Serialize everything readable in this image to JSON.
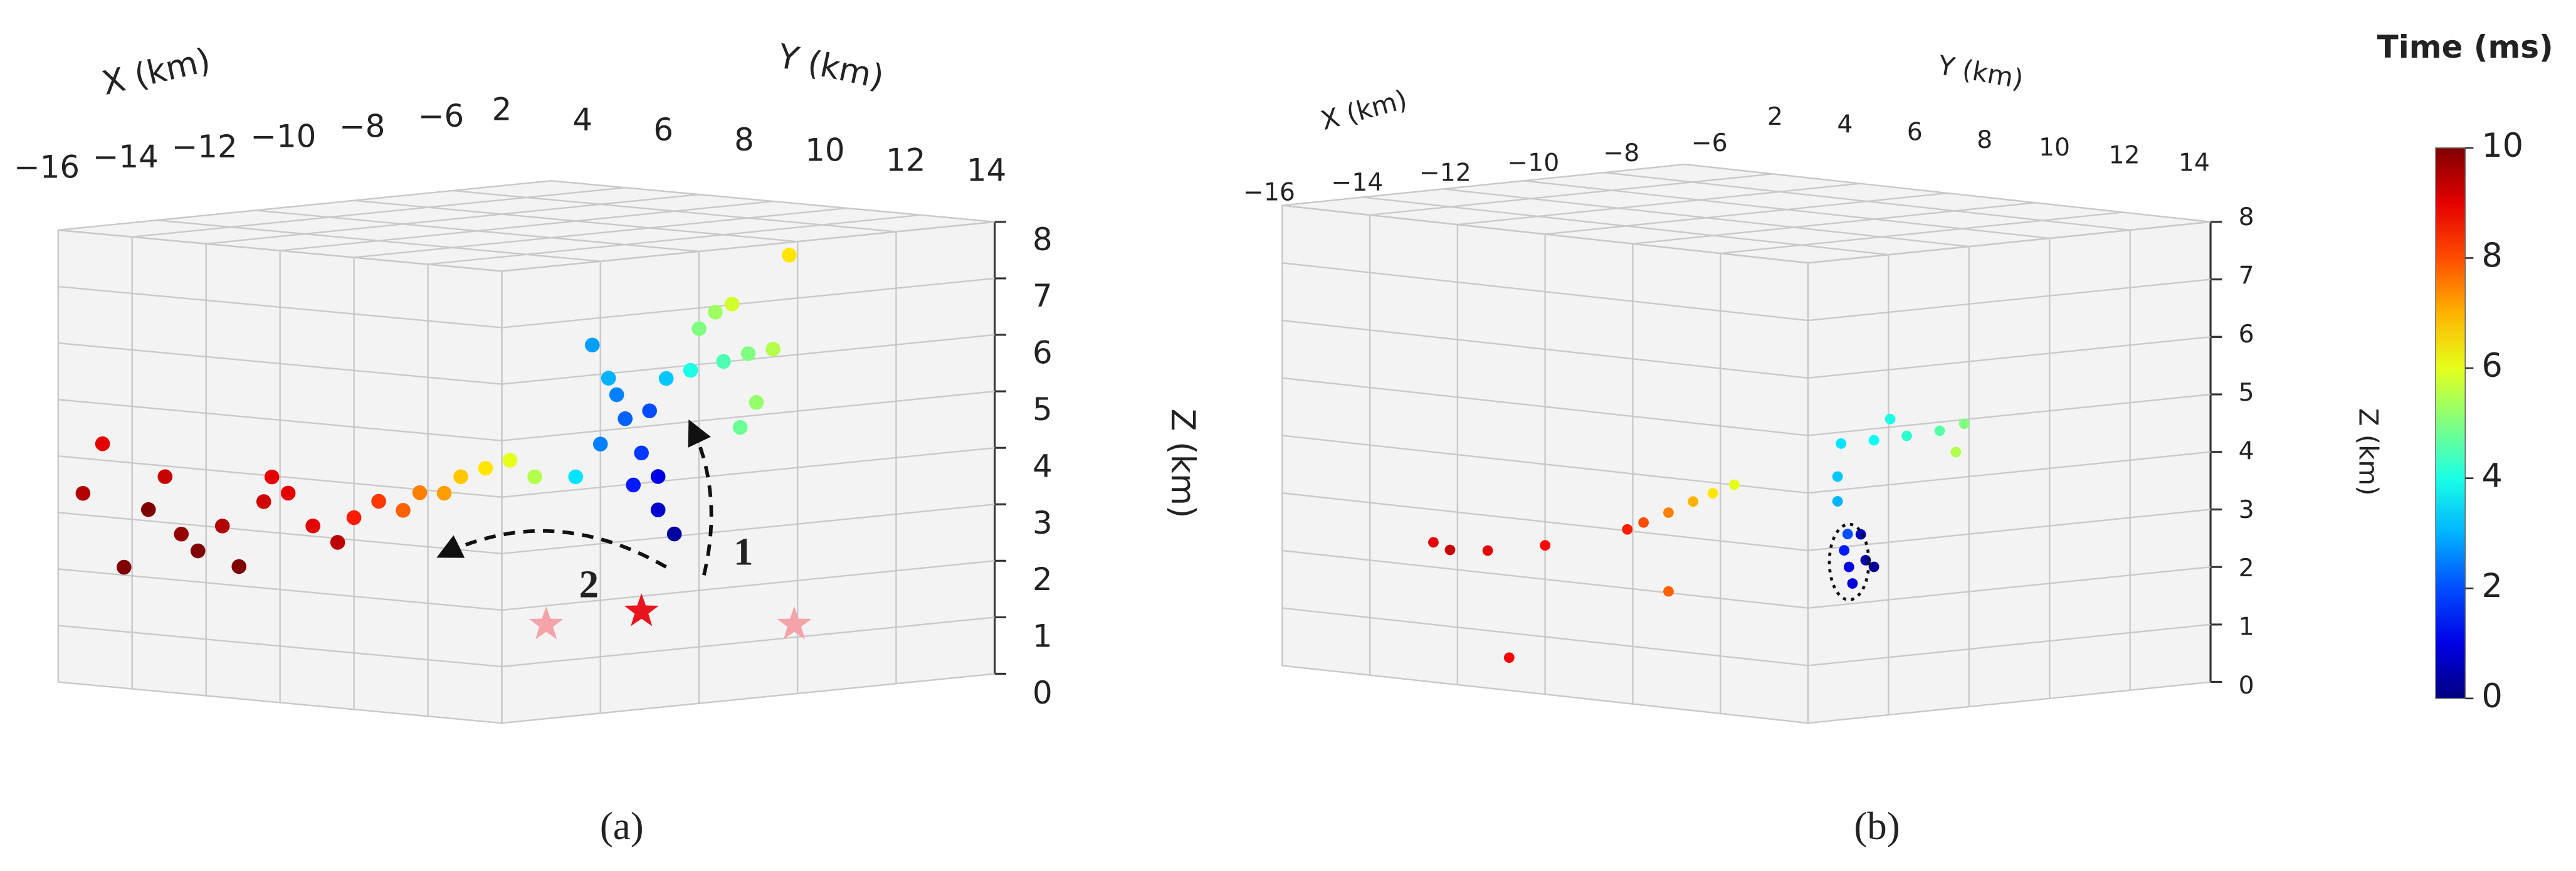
{
  "chart_data": [
    {
      "type": "scatter3d",
      "caption": "(a)",
      "xlabel": "X (km)",
      "ylabel": "Y (km)",
      "zlabel": "Z (km)",
      "xlim": [
        -16,
        -6
      ],
      "ylim": [
        2,
        14
      ],
      "zlim": [
        0,
        8
      ],
      "xticks": [
        {
          "value": -16,
          "label": "−16"
        },
        {
          "value": -14,
          "label": "−14"
        },
        {
          "value": -12,
          "label": "−12"
        },
        {
          "value": -10,
          "label": "−10"
        },
        {
          "value": -8,
          "label": "−8"
        },
        {
          "value": -6,
          "label": "−6"
        }
      ],
      "yticks": [
        2,
        4,
        6,
        8,
        10,
        12,
        14
      ],
      "zticks": [
        0,
        1,
        2,
        3,
        4,
        5,
        6,
        7,
        8
      ],
      "annotations": [
        "1",
        "2"
      ],
      "points": {
        "x": [
          -16,
          -16,
          -16,
          -16,
          -16,
          -16,
          -16,
          -16,
          -16,
          -16,
          -16,
          -16,
          -16,
          -16,
          -13,
          -13,
          -13,
          -13,
          -13,
          -13,
          -13,
          -13,
          -13,
          -11,
          -11,
          -11,
          -11,
          -11,
          -11,
          -11,
          -11,
          -11,
          -11,
          -11,
          -11,
          -11,
          -8,
          -8,
          -8,
          -8,
          -8,
          -8,
          -8,
          -8,
          -8,
          -8
        ],
        "y": [
          3.2,
          2.67,
          3.78,
          4.44,
          5.33,
          5.78,
          6.44,
          6.89,
          7.56,
          8.22,
          8.89,
          4.89,
          7.78,
          9.56,
          6.0,
          6.67,
          7.33,
          7.78,
          8.44,
          8.89,
          9.56,
          10.22,
          10.89,
          9.33,
          10,
          10.67,
          11.11,
          10.44,
          11.33,
          10.89,
          11.56,
          12,
          9.78,
          11.78,
          11.56,
          10.22,
          8.44,
          9.33,
          10,
          10.67,
          9.11,
          9.56,
          11.11,
          10.22,
          9.78,
          8.67
        ],
        "z": [
          4.29,
          3.38,
          2.14,
          3.2,
          2.82,
          2.55,
          3.03,
          2.34,
          3.53,
          3.72,
          3.18,
          3.81,
          3.98,
          2.93,
          2.89,
          3.22,
          3.1,
          3.44,
          3.47,
          3.79,
          3.98,
          4.16,
          3.91,
          3.64,
          4.26,
          4.75,
          4.17,
          5.16,
          4.93,
          3.59,
          3.19,
          2.79,
          6.0,
          5.53,
          3.78,
          5.44,
          5.21,
          5.42,
          5.6,
          5.72,
          6.28,
          6.45,
          7.41,
          4.75,
          4.28,
          5.96
        ],
        "time": [
          9,
          9.5,
          10,
          10,
          9.8,
          10,
          9.5,
          10,
          9.2,
          9,
          9,
          9.3,
          9,
          9.4,
          8.5,
          8.2,
          7.8,
          7.5,
          7.2,
          6.8,
          6.5,
          6.0,
          5.5,
          3.5,
          2.5,
          2.2,
          1.8,
          2.5,
          2.0,
          1.5,
          0.8,
          0.3,
          2.8,
          3.2,
          1.0,
          3.0,
          4.0,
          4.5,
          5.0,
          5.5,
          5.3,
          5.8,
          6.5,
          5.2,
          4.8,
          5.0
        ]
      }
    },
    {
      "type": "scatter3d",
      "caption": "(b)",
      "xlabel": "X (km)",
      "ylabel": "Y (km)",
      "zlabel": "Z (km)",
      "xlim": [
        -16,
        -6
      ],
      "ylim": [
        2,
        14
      ],
      "zlim": [
        0,
        8
      ],
      "xticks": [
        {
          "value": -16,
          "label": "−16"
        },
        {
          "value": -14,
          "label": "−14"
        },
        {
          "value": -12,
          "label": "−12"
        },
        {
          "value": -10,
          "label": "−10"
        },
        {
          "value": -8,
          "label": "−8"
        },
        {
          "value": -6,
          "label": "−6"
        }
      ],
      "yticks": [
        2,
        4,
        6,
        8,
        10,
        12,
        14
      ],
      "zticks": [
        0,
        1,
        2,
        3,
        4,
        5,
        6,
        7,
        8
      ],
      "points": {
        "x": [
          -12,
          -12,
          -12,
          -12,
          -12,
          -12,
          -12,
          -12,
          -12,
          -12,
          -12,
          -12,
          -12,
          -12,
          -12,
          -12,
          -16,
          -16,
          -16,
          -16,
          -16,
          -13,
          -13,
          -13,
          -13,
          -13,
          -13,
          -13
        ],
        "y": [
          11.26,
          11.15,
          11.34,
          11.23,
          11.64,
          11.83,
          11.53,
          11.08,
          11.0,
          11.0,
          11.83,
          12.58,
          13.33,
          12.2,
          13.89,
          13.7,
          5.45,
          5.83,
          6.69,
          7.18,
          8.0,
          7.12,
          7.49,
          8.06,
          8.62,
          9.07,
          9.56,
          8.06
        ],
        "z": [
          2.2,
          2.48,
          1.92,
          2.77,
          2.35,
          2.25,
          2.79,
          4.33,
          3.75,
          3.32,
          4.45,
          4.59,
          4.74,
          4.85,
          4.91,
          4.4,
          2.43,
          2.33,
          2.39,
          0.57,
          2.59,
          2.58,
          2.73,
          2.95,
          3.19,
          3.37,
          3.56,
          1.58
        ],
        "time": [
          1,
          1.5,
          0.9,
          2.0,
          0.4,
          0.2,
          0.6,
          3.5,
          3.2,
          3.0,
          3.8,
          4.2,
          4.6,
          4.0,
          5.0,
          5.5,
          9,
          9.3,
          9,
          8.8,
          8.7,
          8.5,
          8,
          7.5,
          7,
          6.5,
          6,
          7.8
        ]
      }
    }
  ],
  "colorbar": {
    "label": "Time (ms)",
    "lim": [
      0,
      10
    ],
    "ticks": [
      0,
      2,
      4,
      6,
      8,
      10
    ],
    "colormap": "jet"
  }
}
